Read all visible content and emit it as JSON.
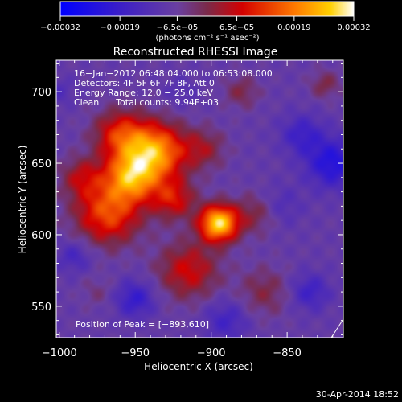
{
  "chart_data": {
    "type": "heatmap",
    "title": "Reconstructed RHESSI Image",
    "xlabel": "Heliocentric X (arcsec)",
    "ylabel": "Heliocentric Y (arcsec)",
    "xlim": [
      -1002,
      -813
    ],
    "ylim": [
      528,
      722
    ],
    "x_ticks": [
      -1000,
      -950,
      -900,
      -850
    ],
    "x_tick_labels": [
      "−1000",
      "−950",
      "−900",
      "−850"
    ],
    "y_ticks": [
      550,
      600,
      650,
      700
    ],
    "y_tick_labels": [
      "550",
      "600",
      "650",
      "700"
    ],
    "colorbar": {
      "range": [
        -0.00032,
        0.00032
      ],
      "ticks": [
        -0.00032,
        -0.00019,
        -6.5e-05,
        6.5e-05,
        0.00019,
        0.00032
      ],
      "tick_labels": [
        "−0.00032",
        "−0.00019",
        "−6.5e−05",
        "6.5e−05",
        "0.00019",
        "0.00032"
      ],
      "units_label": "(photons cm⁻² s⁻¹ asec⁻²)"
    },
    "annotations": [
      "16−Jan−2012 06:48:04.000 to 06:53:08.000",
      "Detectors: 4F 5F 6F 7F 8F, Att 0",
      "Energy Range: 12.0 − 25.0 keV",
      "Clean      Total counts: 9.94E+03"
    ],
    "peak_label": "Position of Peak = [−893,610]",
    "peak": [
      -893,
      610
    ],
    "sources": [
      {
        "x": -895,
        "y": 608,
        "sigma": 9,
        "amp": 0.00036
      },
      {
        "x": -937,
        "y": 658,
        "sigma": 14,
        "amp": 0.0003
      },
      {
        "x": -953,
        "y": 640,
        "sigma": 12,
        "amp": 0.00026
      },
      {
        "x": -968,
        "y": 615,
        "sigma": 15,
        "amp": 0.00022
      },
      {
        "x": -960,
        "y": 670,
        "sigma": 12,
        "amp": 0.00018
      },
      {
        "x": -985,
        "y": 640,
        "sigma": 10,
        "amp": 0.00012
      },
      {
        "x": -915,
        "y": 575,
        "sigma": 14,
        "amp": 0.00015
      },
      {
        "x": -925,
        "y": 625,
        "sigma": 10,
        "amp": 0.00016
      },
      {
        "x": -870,
        "y": 615,
        "sigma": 10,
        "amp": 9e-05
      },
      {
        "x": -905,
        "y": 660,
        "sigma": 10,
        "amp": 0.0001
      },
      {
        "x": -880,
        "y": 700,
        "sigma": 8,
        "amp": 8e-05
      },
      {
        "x": -825,
        "y": 705,
        "sigma": 7,
        "amp": 8e-05
      },
      {
        "x": -865,
        "y": 560,
        "sigma": 12,
        "amp": 8e-05
      },
      {
        "x": -975,
        "y": 560,
        "sigma": 8,
        "amp": 4e-05
      },
      {
        "x": -820,
        "y": 650,
        "sigma": 12,
        "amp": -0.00016
      },
      {
        "x": -840,
        "y": 670,
        "sigma": 10,
        "amp": -0.0001
      },
      {
        "x": -950,
        "y": 555,
        "sigma": 9,
        "amp": -0.00012
      },
      {
        "x": -835,
        "y": 560,
        "sigma": 9,
        "amp": -0.0001
      },
      {
        "x": -990,
        "y": 585,
        "sigma": 8,
        "amp": -8e-05
      },
      {
        "x": -890,
        "y": 540,
        "sigma": 10,
        "amp": -9e-05
      },
      {
        "x": -855,
        "y": 620,
        "sigma": 10,
        "amp": -6e-05
      },
      {
        "x": -920,
        "y": 700,
        "sigma": 8,
        "amp": -4e-05
      },
      {
        "x": -1000,
        "y": 700,
        "sigma": 7,
        "amp": -5e-05
      }
    ]
  },
  "footer": {
    "timestamp": "30-Apr-2014 18:52"
  }
}
